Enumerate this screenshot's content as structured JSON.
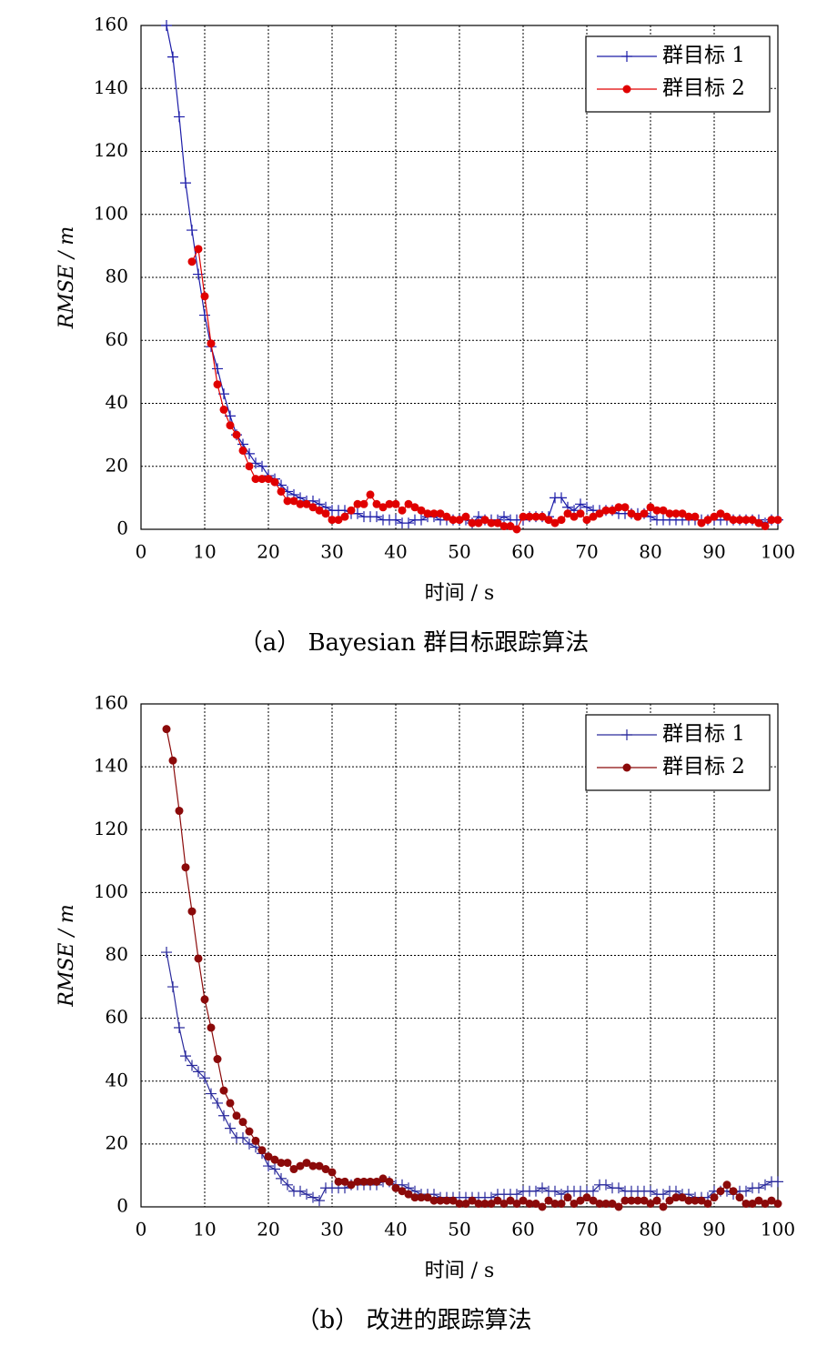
{
  "chart_data": [
    {
      "type": "line",
      "caption": "（a） Bayesian 群目标跟踪算法",
      "xlabel": "时间 / s",
      "ylabel": "RMSE / m",
      "xlim": [
        0,
        100
      ],
      "ylim": [
        0,
        160
      ],
      "xticks": [
        0,
        10,
        20,
        30,
        40,
        50,
        60,
        70,
        80,
        90,
        100
      ],
      "yticks": [
        0,
        20,
        40,
        60,
        80,
        100,
        120,
        140,
        160
      ],
      "grid": true,
      "legend": "upper right",
      "x": [
        4,
        5,
        6,
        7,
        8,
        9,
        10,
        11,
        12,
        13,
        14,
        15,
        16,
        17,
        18,
        19,
        20,
        21,
        22,
        23,
        24,
        25,
        26,
        27,
        28,
        29,
        30,
        31,
        32,
        33,
        34,
        35,
        36,
        37,
        38,
        39,
        40,
        41,
        42,
        43,
        44,
        45,
        46,
        47,
        48,
        49,
        50,
        51,
        52,
        53,
        54,
        55,
        56,
        57,
        58,
        59,
        60,
        61,
        62,
        63,
        64,
        65,
        66,
        67,
        68,
        69,
        70,
        71,
        72,
        73,
        74,
        75,
        76,
        77,
        78,
        79,
        80,
        81,
        82,
        83,
        84,
        85,
        86,
        87,
        88,
        89,
        90,
        91,
        92,
        93,
        94,
        95,
        96,
        97,
        98,
        99,
        100
      ],
      "series": [
        {
          "name": "群目标 1",
          "color": "#1c1ca8",
          "marker": "plus",
          "values": [
            160,
            150,
            131,
            110,
            95,
            81,
            68,
            58,
            51,
            43,
            36,
            30,
            27,
            24,
            21,
            20,
            17,
            16,
            14,
            12,
            11,
            10,
            9,
            9,
            8,
            7,
            6,
            6,
            6,
            5,
            5,
            4,
            4,
            4,
            3,
            3,
            3,
            2,
            2,
            3,
            3,
            4,
            4,
            3,
            3,
            3,
            3,
            3,
            2,
            4,
            3,
            3,
            3,
            4,
            3,
            3,
            3,
            4,
            4,
            4,
            4,
            10,
            10,
            7,
            6,
            8,
            7,
            6,
            6,
            6,
            6,
            5,
            5,
            5,
            5,
            5,
            4,
            3,
            3,
            3,
            3,
            3,
            3,
            3,
            3,
            3,
            3,
            3,
            3,
            3,
            3,
            3,
            3,
            3,
            2,
            3,
            3
          ]
        },
        {
          "name": "群目标 2",
          "color": "#e00000",
          "marker": "circle",
          "values": [
            null,
            null,
            null,
            null,
            85,
            89,
            74,
            59,
            46,
            38,
            33,
            30,
            25,
            20,
            16,
            16,
            16,
            15,
            12,
            9,
            9,
            8,
            8,
            7,
            6,
            5,
            3,
            3,
            4,
            6,
            8,
            8,
            11,
            8,
            7,
            8,
            8,
            6,
            8,
            7,
            6,
            5,
            5,
            5,
            4,
            3,
            3,
            4,
            2,
            2,
            3,
            2,
            2,
            1,
            1,
            0,
            4,
            4,
            4,
            4,
            3,
            2,
            3,
            5,
            4,
            5,
            3,
            4,
            5,
            6,
            6,
            7,
            7,
            5,
            4,
            5,
            7,
            6,
            6,
            5,
            5,
            5,
            4,
            4,
            2,
            3,
            4,
            5,
            4,
            3,
            3,
            3,
            3,
            2,
            1,
            3,
            3
          ]
        }
      ]
    },
    {
      "type": "line",
      "caption": "（b） 改进的跟踪算法",
      "xlabel": "时间 / s",
      "ylabel": "RMSE / m",
      "xlim": [
        0,
        100
      ],
      "ylim": [
        0,
        160
      ],
      "xticks": [
        0,
        10,
        20,
        30,
        40,
        50,
        60,
        70,
        80,
        90,
        100
      ],
      "yticks": [
        0,
        20,
        40,
        60,
        80,
        100,
        120,
        140,
        160
      ],
      "grid": true,
      "legend": "upper right",
      "x": [
        4,
        5,
        6,
        7,
        8,
        9,
        10,
        11,
        12,
        13,
        14,
        15,
        16,
        17,
        18,
        19,
        20,
        21,
        22,
        23,
        24,
        25,
        26,
        27,
        28,
        29,
        30,
        31,
        32,
        33,
        34,
        35,
        36,
        37,
        38,
        39,
        40,
        41,
        42,
        43,
        44,
        45,
        46,
        47,
        48,
        49,
        50,
        51,
        52,
        53,
        54,
        55,
        56,
        57,
        58,
        59,
        60,
        61,
        62,
        63,
        64,
        65,
        66,
        67,
        68,
        69,
        70,
        71,
        72,
        73,
        74,
        75,
        76,
        77,
        78,
        79,
        80,
        81,
        82,
        83,
        84,
        85,
        86,
        87,
        88,
        89,
        90,
        91,
        92,
        93,
        94,
        95,
        96,
        97,
        98,
        99,
        100
      ],
      "series": [
        {
          "name": "群目标 1",
          "color": "#2a2a9c",
          "marker": "plus",
          "values": [
            81,
            70,
            57,
            48,
            45,
            43,
            41,
            36,
            33,
            29,
            25,
            22,
            22,
            20,
            19,
            17,
            13,
            12,
            9,
            7,
            5,
            5,
            4,
            3,
            2,
            6,
            6,
            6,
            6,
            7,
            7,
            7,
            7,
            7,
            8,
            8,
            7,
            7,
            6,
            5,
            4,
            4,
            4,
            3,
            3,
            3,
            3,
            3,
            3,
            3,
            3,
            3,
            4,
            4,
            4,
            4,
            5,
            5,
            5,
            6,
            5,
            5,
            4,
            5,
            5,
            5,
            5,
            5,
            7,
            7,
            6,
            6,
            5,
            5,
            5,
            5,
            5,
            4,
            4,
            5,
            5,
            4,
            4,
            3,
            3,
            3,
            5,
            5,
            5,
            4,
            5,
            5,
            6,
            6,
            7,
            8,
            8
          ]
        },
        {
          "name": "群目标 2",
          "color": "#8b0a0a",
          "marker": "circle",
          "values": [
            152,
            142,
            126,
            108,
            94,
            79,
            66,
            57,
            47,
            37,
            33,
            29,
            27,
            24,
            21,
            18,
            16,
            15,
            14,
            14,
            12,
            13,
            14,
            13,
            13,
            12,
            11,
            8,
            8,
            7,
            8,
            8,
            8,
            8,
            9,
            8,
            6,
            5,
            4,
            3,
            3,
            3,
            2,
            2,
            2,
            2,
            1,
            1,
            2,
            1,
            1,
            1,
            2,
            1,
            2,
            1,
            2,
            1,
            1,
            0,
            2,
            1,
            1,
            3,
            1,
            2,
            3,
            2,
            1,
            1,
            1,
            0,
            2,
            2,
            2,
            2,
            1,
            2,
            0,
            2,
            3,
            3,
            2,
            2,
            2,
            1,
            3,
            5,
            7,
            5,
            3,
            1,
            1,
            2,
            1,
            2,
            1
          ]
        }
      ]
    }
  ]
}
